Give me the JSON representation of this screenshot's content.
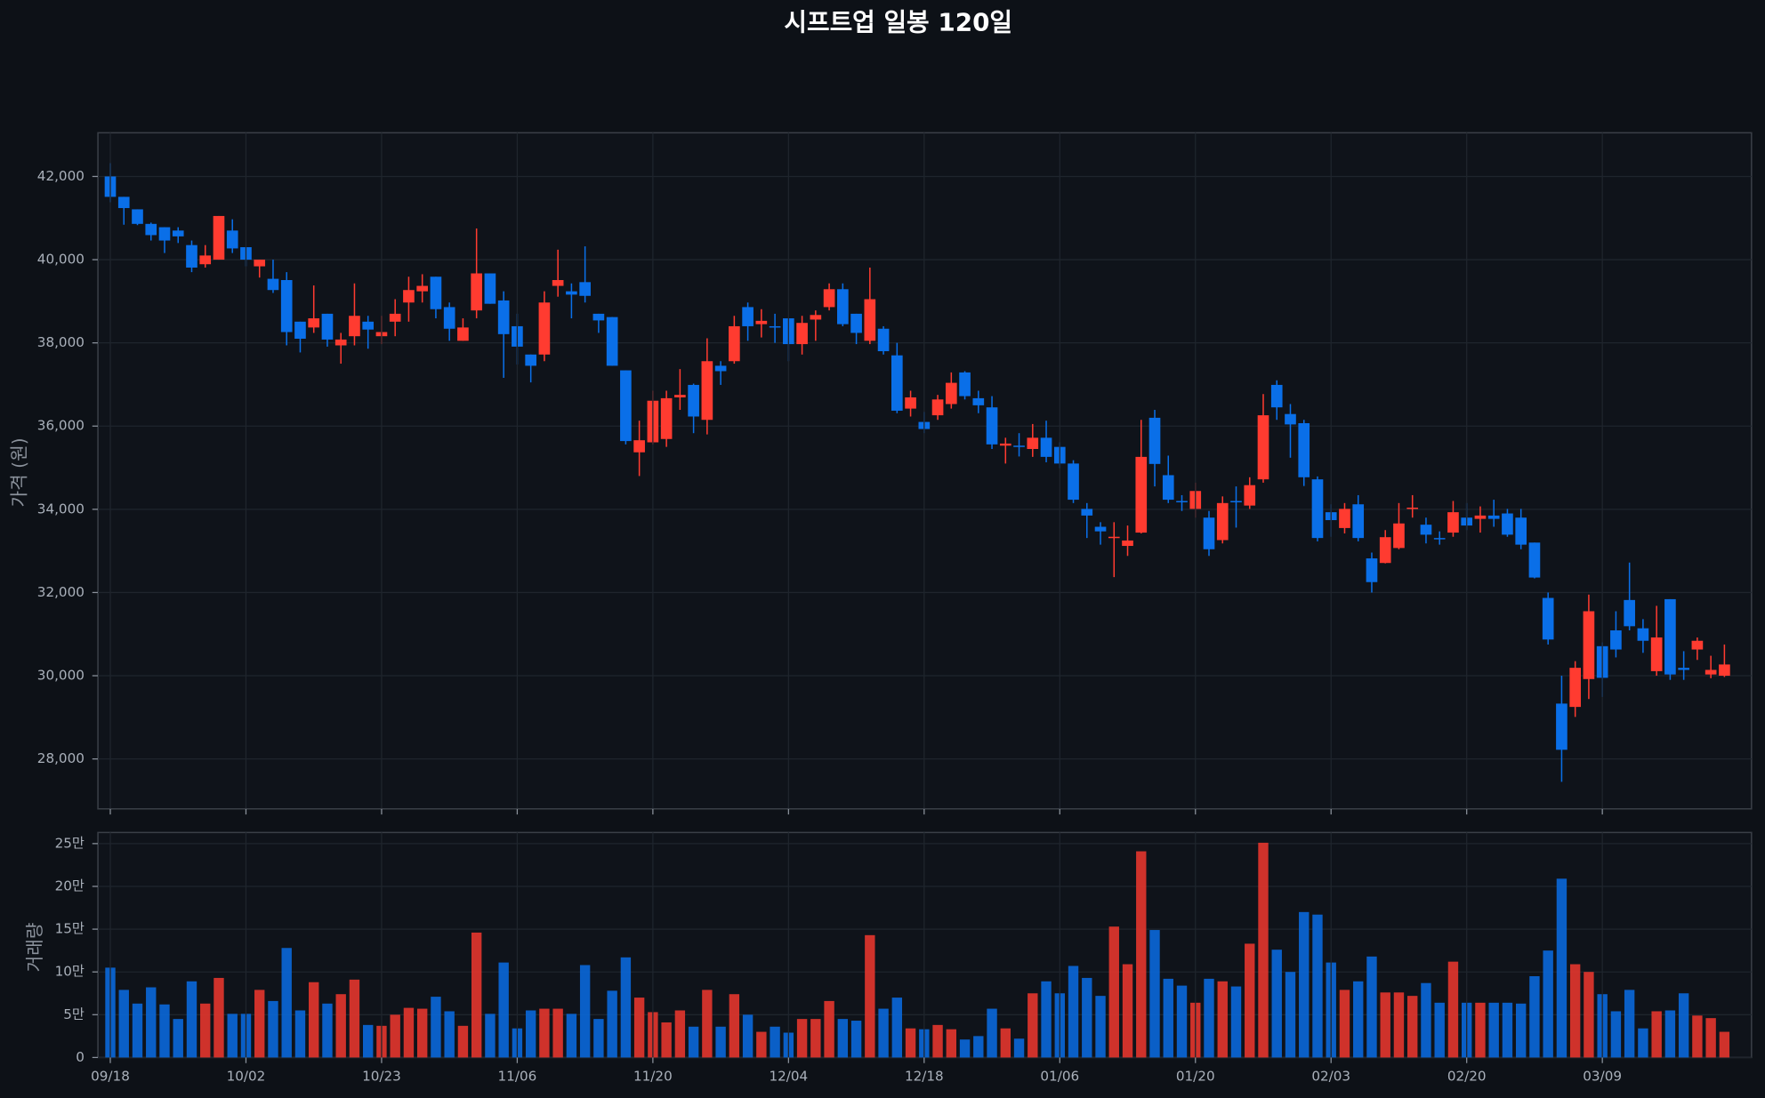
{
  "chart_data": [
    {
      "type": "candlestick",
      "title": "시프트업 일봉 120일",
      "ylabel": "가격 (원)",
      "up_color": "#ff3b30",
      "down_color": "#0a6fe8",
      "grid": true,
      "ylim": [
        26800,
        43050
      ],
      "yticks": [
        {
          "value": 28000,
          "label": "28,000"
        },
        {
          "value": 30000,
          "label": "30,000"
        },
        {
          "value": 32000,
          "label": "32,000"
        },
        {
          "value": 34000,
          "label": "34,000"
        },
        {
          "value": 36000,
          "label": "36,000"
        },
        {
          "value": 38000,
          "label": "38,000"
        },
        {
          "value": 40000,
          "label": "40,000"
        },
        {
          "value": 42000,
          "label": "42,000"
        }
      ],
      "open": [
        42000,
        41510,
        41210,
        40860,
        40780,
        40700,
        40350,
        39890,
        40000,
        40700,
        40300,
        39840,
        39540,
        39510,
        38510,
        38370,
        38700,
        37940,
        38160,
        38510,
        38160,
        38510,
        38970,
        39240,
        39590,
        38860,
        38050,
        38780,
        39670,
        39020,
        38400,
        37720,
        37720,
        39370,
        39240,
        39460,
        38700,
        38620,
        37340,
        35370,
        35610,
        35690,
        36690,
        36990,
        36150,
        37450,
        37560,
        38860,
        38450,
        38400,
        38590,
        37970,
        38560,
        38860,
        39290,
        38700,
        38050,
        38340,
        37700,
        36420,
        36100,
        36260,
        36530,
        37290,
        36670,
        36450,
        35530,
        35530,
        35450,
        35720,
        35500,
        35100,
        34010,
        33580,
        33310,
        33120,
        33440,
        36200,
        34820,
        34200,
        34010,
        33800,
        33260,
        34200,
        34090,
        34720,
        36990,
        36290,
        36070,
        34720,
        33930,
        33550,
        34120,
        32820,
        32710,
        33070,
        34010,
        33630,
        33310,
        33440,
        33800,
        33770,
        33850,
        33900,
        33800,
        33200,
        31870,
        29330,
        29250,
        29920,
        30710,
        31090,
        31820,
        31140,
        30110,
        31840,
        30190,
        30630,
        30030,
        30000
      ],
      "high": [
        42320,
        41510,
        41210,
        40890,
        40780,
        40780,
        40460,
        40350,
        41050,
        40970,
        40300,
        40000,
        40000,
        39700,
        38510,
        39380,
        38700,
        38240,
        39430,
        38650,
        38650,
        39050,
        39590,
        39650,
        39590,
        38970,
        38590,
        40750,
        39670,
        39240,
        38700,
        37720,
        39240,
        40240,
        39430,
        40320,
        38700,
        38620,
        37340,
        36130,
        36850,
        36850,
        37370,
        37020,
        38110,
        37560,
        38650,
        38970,
        38810,
        38700,
        38590,
        38650,
        38780,
        39430,
        39430,
        38700,
        39810,
        38400,
        38000,
        36850,
        36340,
        36750,
        37290,
        37320,
        36850,
        36720,
        35720,
        35830,
        36050,
        36130,
        35610,
        35180,
        34150,
        33690,
        33690,
        33610,
        36150,
        36390,
        35290,
        34340,
        34640,
        33960,
        34310,
        34550,
        34770,
        36770,
        37100,
        36530,
        36150,
        34790,
        34120,
        34150,
        34340,
        32960,
        33500,
        34150,
        34340,
        33800,
        33470,
        34200,
        34150,
        34070,
        34230,
        34010,
        34010,
        33200,
        32000,
        30000,
        30350,
        31950,
        30800,
        31550,
        32720,
        31360,
        31680,
        31840,
        30590,
        30920,
        30480,
        30750
      ],
      "low": [
        41380,
        40840,
        40830,
        40460,
        40160,
        40400,
        39700,
        39810,
        40000,
        40160,
        39840,
        39570,
        39200,
        37940,
        37770,
        38240,
        37910,
        37500,
        37940,
        37860,
        37970,
        38160,
        38510,
        38970,
        38590,
        38050,
        38050,
        38590,
        38940,
        37160,
        37480,
        37050,
        37560,
        39110,
        38590,
        38970,
        38240,
        37450,
        35560,
        34800,
        35560,
        35500,
        36390,
        35830,
        35800,
        36990,
        37500,
        38050,
        38130,
        38000,
        37560,
        37720,
        38050,
        38780,
        38400,
        37970,
        37970,
        37720,
        36310,
        36230,
        35830,
        36150,
        36420,
        36640,
        36310,
        35450,
        35100,
        35270,
        35260,
        35130,
        34990,
        34150,
        33310,
        33150,
        32370,
        32880,
        33420,
        34550,
        34150,
        33960,
        33800,
        32880,
        33180,
        33560,
        34010,
        34640,
        36150,
        35240,
        34560,
        33230,
        33340,
        33420,
        33230,
        32000,
        32700,
        33040,
        33800,
        33180,
        33150,
        33340,
        33500,
        33440,
        33580,
        33340,
        33040,
        32340,
        30750,
        27450,
        29010,
        29440,
        29490,
        30440,
        31090,
        30550,
        30000,
        29900,
        29900,
        30380,
        29940,
        29970
      ],
      "close": [
        41510,
        41240,
        40860,
        40590,
        40460,
        40560,
        39810,
        40100,
        41050,
        40270,
        40000,
        40000,
        39270,
        38260,
        38100,
        38590,
        38080,
        38080,
        38650,
        38320,
        38260,
        38700,
        39270,
        39370,
        38810,
        38340,
        38370,
        39670,
        38940,
        38210,
        37910,
        37450,
        38970,
        39510,
        39160,
        39130,
        38540,
        37450,
        35640,
        35660,
        36610,
        36670,
        36750,
        36230,
        37560,
        37320,
        38400,
        38400,
        38530,
        38370,
        37970,
        38480,
        38670,
        39290,
        38450,
        38240,
        39050,
        37800,
        36370,
        36690,
        35930,
        36640,
        37040,
        36720,
        36500,
        35560,
        35580,
        35500,
        35720,
        35260,
        35100,
        34230,
        33850,
        33470,
        33340,
        33250,
        35260,
        35090,
        34230,
        34170,
        34440,
        33040,
        34150,
        34170,
        34580,
        36260,
        36450,
        36040,
        34770,
        33310,
        33740,
        34010,
        33310,
        32250,
        33330,
        33660,
        34040,
        33390,
        33280,
        33930,
        33610,
        33850,
        33770,
        33390,
        33150,
        32360,
        30870,
        28220,
        30190,
        31550,
        29950,
        30630,
        31190,
        30840,
        30920,
        30030,
        30140,
        30840,
        30140,
        30270
      ]
    },
    {
      "type": "bar",
      "ylabel": "거래량",
      "grid": true,
      "up_color": "#e0352c",
      "down_color": "#0a66d6",
      "ylim": [
        0,
        263000
      ],
      "yticks": [
        0,
        {
          "value": 50000,
          "label": "5만"
        },
        {
          "value": 100000,
          "label": "10만"
        },
        {
          "value": 150000,
          "label": "15만"
        },
        {
          "value": 200000,
          "label": "20만"
        },
        {
          "value": 250000,
          "label": "25만"
        }
      ],
      "categories": [
        "09/18",
        null,
        null,
        null,
        null,
        null,
        null,
        null,
        null,
        null,
        "10/02",
        null,
        null,
        null,
        null,
        null,
        null,
        null,
        null,
        null,
        "10/23",
        null,
        null,
        null,
        null,
        null,
        null,
        null,
        null,
        null,
        "11/06",
        null,
        null,
        null,
        null,
        null,
        null,
        null,
        null,
        null,
        "11/20",
        null,
        null,
        null,
        null,
        null,
        null,
        null,
        null,
        null,
        "12/04",
        null,
        null,
        null,
        null,
        null,
        null,
        null,
        null,
        null,
        "12/18",
        null,
        null,
        null,
        null,
        null,
        null,
        null,
        null,
        null,
        "01/06",
        null,
        null,
        null,
        null,
        null,
        null,
        null,
        null,
        null,
        "01/20",
        null,
        null,
        null,
        null,
        null,
        null,
        null,
        null,
        null,
        "02/03",
        null,
        null,
        null,
        null,
        null,
        null,
        null,
        null,
        null,
        "02/20",
        null,
        null,
        null,
        null,
        null,
        null,
        null,
        null,
        null,
        "03/09",
        null,
        null,
        null,
        null,
        null,
        null,
        null,
        null,
        null
      ],
      "values": [
        105000,
        79000,
        63000,
        82000,
        62000,
        45000,
        89000,
        63000,
        93000,
        51000,
        51000,
        79000,
        66000,
        128000,
        55000,
        88000,
        63000,
        74000,
        91000,
        38000,
        37000,
        50000,
        58000,
        57000,
        71000,
        54000,
        37000,
        146000,
        51000,
        111000,
        34000,
        55000,
        57000,
        57000,
        51000,
        108000,
        45000,
        78000,
        117000,
        70000,
        53000,
        41000,
        55000,
        36000,
        79000,
        36000,
        74000,
        50000,
        30000,
        36000,
        29000,
        45000,
        45000,
        66000,
        45000,
        43000,
        143000,
        57000,
        70000,
        34000,
        33000,
        38000,
        33000,
        21000,
        25000,
        57000,
        34000,
        22000,
        75000,
        89000,
        75000,
        107000,
        93000,
        72000,
        153000,
        109000,
        241000,
        149000,
        92000,
        84000,
        64000,
        92000,
        89000,
        83000,
        133000,
        251000,
        126000,
        100000,
        170000,
        167000,
        111000,
        79000,
        89000,
        118000,
        76000,
        76000,
        72000,
        87000,
        64000,
        112000,
        64000,
        64000,
        64000,
        64000,
        63000,
        95000,
        125000,
        209000,
        109000,
        100000,
        74000,
        54000,
        79000,
        34000,
        54000,
        55000,
        75000,
        49000,
        46000,
        30000
      ]
    }
  ]
}
